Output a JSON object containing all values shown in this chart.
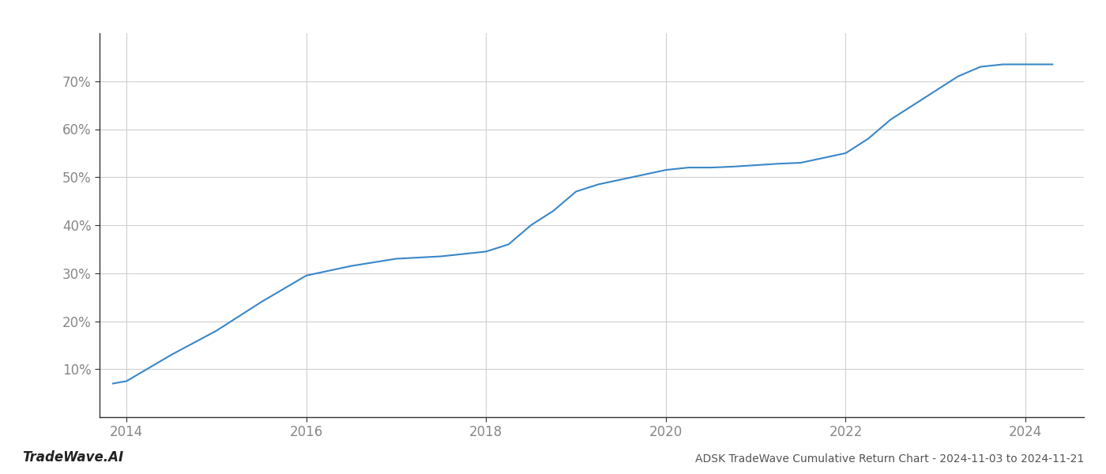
{
  "x_values": [
    2013.85,
    2014.0,
    2014.5,
    2015.0,
    2015.5,
    2016.0,
    2016.25,
    2016.5,
    2017.0,
    2017.5,
    2018.0,
    2018.25,
    2018.5,
    2018.75,
    2019.0,
    2019.25,
    2019.5,
    2019.75,
    2020.0,
    2020.25,
    2020.5,
    2020.75,
    2021.0,
    2021.25,
    2021.5,
    2022.0,
    2022.25,
    2022.5,
    2022.75,
    2023.0,
    2023.25,
    2023.5,
    2023.75,
    2024.0,
    2024.3
  ],
  "y_values": [
    7.0,
    7.5,
    13.0,
    18.0,
    24.0,
    29.5,
    30.5,
    31.5,
    33.0,
    33.5,
    34.5,
    36.0,
    40.0,
    43.0,
    47.0,
    48.5,
    49.5,
    50.5,
    51.5,
    52.0,
    52.0,
    52.2,
    52.5,
    52.8,
    53.0,
    55.0,
    58.0,
    62.0,
    65.0,
    68.0,
    71.0,
    73.0,
    73.5,
    73.5,
    73.5
  ],
  "line_color": "#3a87c8",
  "line_width": 1.5,
  "title": "ADSK TradeWave Cumulative Return Chart - 2024-11-03 to 2024-11-21",
  "watermark": "TradeWave.AI",
  "xlim": [
    2013.7,
    2024.65
  ],
  "ylim": [
    0,
    80
  ],
  "yticks": [
    10,
    20,
    30,
    40,
    50,
    60,
    70
  ],
  "xticks": [
    2014,
    2016,
    2018,
    2020,
    2022,
    2024
  ],
  "background_color": "#ffffff",
  "grid_color": "#d0d0d0",
  "title_fontsize": 10,
  "tick_fontsize": 12,
  "watermark_fontsize": 12,
  "tick_color": "#888888",
  "spine_color": "#333333"
}
